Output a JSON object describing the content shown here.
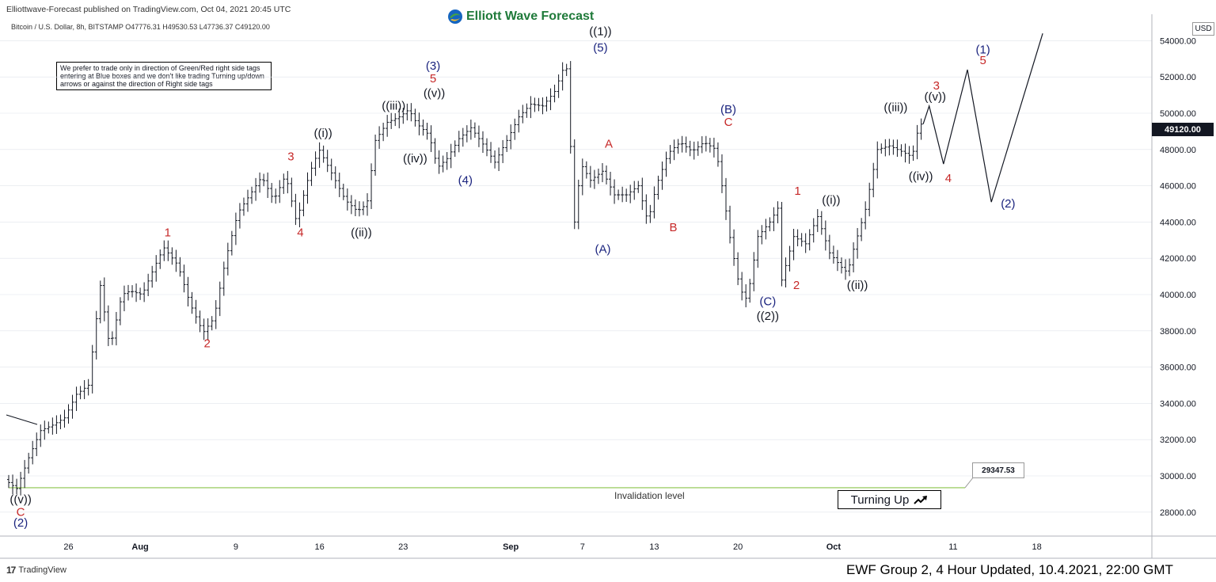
{
  "header": {
    "publish_line": "Elliottwave-Forecast published on TradingView.com, Oct 04, 2021 20:45 UTC",
    "brand": "Elliott Wave Forecast",
    "symbol_line": "Bitcoin / U.S. Dollar, 8h, BITSTAMP  O47776.31  H49530.53  L47736.37  C49120.00"
  },
  "note": "We prefer to trade only in direction of Green/Red right side tags entering at Blue boxes and we don't like trading Turning up/down arrows or against the direction of Right side tags",
  "price_axis": {
    "currency": "USD",
    "current_price": "49120.00"
  },
  "invalidation": {
    "label": "Invalidation level",
    "value": "29347.53",
    "level": 29347.53,
    "color": "#8bc34a"
  },
  "turning": {
    "label": "Turning Up",
    "icon": "arrow-up-right-icon"
  },
  "footer": {
    "tradingview": "TradingView",
    "ewf": "EWF Group 2, 4 Hour Updated, 10.4.2021, 22:00 GMT"
  },
  "colors": {
    "blue": "#1a237e",
    "red": "#c62828",
    "black": "#131722",
    "grid": "#e0e3eb"
  },
  "chart_data": {
    "type": "line",
    "title": "",
    "ylim": [
      26500,
      55500
    ],
    "yticks": [
      28000,
      30000,
      32000,
      34000,
      36000,
      38000,
      40000,
      42000,
      44000,
      46000,
      48000,
      50000,
      52000,
      54000
    ],
    "ytick_labels": [
      "28000.00",
      "30000.00",
      "32000.00",
      "34000.00",
      "36000.00",
      "38000.00",
      "40000.00",
      "42000.00",
      "44000.00",
      "46000.00",
      "48000.00",
      "50000.00",
      "52000.00",
      "54000.00"
    ],
    "x_ticks": [
      {
        "label": "26",
        "bold": false
      },
      {
        "label": "Aug",
        "bold": true
      },
      {
        "label": "9",
        "bold": false
      },
      {
        "label": "16",
        "bold": false
      },
      {
        "label": "23",
        "bold": false
      },
      {
        "label": "Sep",
        "bold": true
      },
      {
        "label": "7",
        "bold": false
      },
      {
        "label": "13",
        "bold": false
      },
      {
        "label": "20",
        "bold": false
      },
      {
        "label": "Oct",
        "bold": true
      },
      {
        "label": "11",
        "bold": false
      },
      {
        "label": "18",
        "bold": false
      }
    ],
    "x_tick_days": [
      5,
      11,
      19,
      26,
      33,
      42,
      48,
      54,
      61,
      69,
      79,
      86
    ],
    "price_path": [
      [
        0.0,
        29800
      ],
      [
        1.0,
        29300
      ],
      [
        2.0,
        31000
      ],
      [
        3.0,
        32500
      ],
      [
        4.0,
        32800
      ],
      [
        5.0,
        33200
      ],
      [
        6.0,
        34500
      ],
      [
        7.0,
        35000
      ],
      [
        8.0,
        40500
      ],
      [
        8.8,
        37000
      ],
      [
        9.8,
        40000
      ],
      [
        10.5,
        40200
      ],
      [
        11.5,
        40000
      ],
      [
        12.5,
        41500
      ],
      [
        13.3,
        42600
      ],
      [
        14.5,
        41600
      ],
      [
        15.5,
        39500
      ],
      [
        16.6,
        37900
      ],
      [
        17.5,
        38700
      ],
      [
        18.5,
        42000
      ],
      [
        19.5,
        44500
      ],
      [
        20.5,
        45500
      ],
      [
        21.5,
        46500
      ],
      [
        22.5,
        45200
      ],
      [
        23.5,
        46600
      ],
      [
        24.4,
        44000
      ],
      [
        25.5,
        46700
      ],
      [
        26.3,
        48000
      ],
      [
        27.5,
        46500
      ],
      [
        28.5,
        45200
      ],
      [
        29.5,
        44600
      ],
      [
        30.3,
        45000
      ],
      [
        31.0,
        48500
      ],
      [
        32.0,
        49500
      ],
      [
        33.0,
        49800
      ],
      [
        33.8,
        50200
      ],
      [
        34.5,
        49400
      ],
      [
        35.5,
        48800
      ],
      [
        36.2,
        47000
      ],
      [
        37.0,
        47500
      ],
      [
        38.0,
        48600
      ],
      [
        39.0,
        49200
      ],
      [
        40.0,
        48300
      ],
      [
        41.0,
        47300
      ],
      [
        42.0,
        48500
      ],
      [
        43.0,
        49800
      ],
      [
        44.0,
        50500
      ],
      [
        45.0,
        50400
      ],
      [
        46.0,
        51200
      ],
      [
        46.8,
        52600
      ],
      [
        47.2,
        52300
      ],
      [
        47.5,
        43000
      ],
      [
        48.2,
        47200
      ],
      [
        49.0,
        46300
      ],
      [
        50.0,
        46800
      ],
      [
        51.0,
        45500
      ],
      [
        52.0,
        45500
      ],
      [
        53.0,
        46000
      ],
      [
        53.8,
        44000
      ],
      [
        54.5,
        46000
      ],
      [
        55.5,
        47800
      ],
      [
        56.5,
        48400
      ],
      [
        57.5,
        47900
      ],
      [
        58.5,
        48400
      ],
      [
        59.5,
        48000
      ],
      [
        60.2,
        45200
      ],
      [
        60.7,
        43000
      ],
      [
        61.5,
        40300
      ],
      [
        62.1,
        39700
      ],
      [
        63.0,
        43200
      ],
      [
        64.0,
        44000
      ],
      [
        64.7,
        44800
      ],
      [
        65.0,
        40800
      ],
      [
        66.0,
        43200
      ],
      [
        67.0,
        42800
      ],
      [
        68.0,
        44300
      ],
      [
        69.0,
        42300
      ],
      [
        70.0,
        41500
      ],
      [
        70.5,
        41200
      ],
      [
        71.0,
        42500
      ],
      [
        72.0,
        44700
      ],
      [
        73.0,
        48000
      ],
      [
        74.0,
        48200
      ],
      [
        75.0,
        47900
      ],
      [
        75.9,
        47600
      ],
      [
        76.5,
        49400
      ]
    ],
    "projection_path": [
      [
        76.5,
        49400
      ],
      [
        77.0,
        50400
      ],
      [
        78.2,
        47200
      ],
      [
        80.2,
        52400
      ],
      [
        82.2,
        45100
      ],
      [
        86.5,
        54400
      ]
    ],
    "invalidation_line_start_day": 0,
    "invalidation_line_end_day": 80,
    "wave_labels": [
      {
        "text": "((v))",
        "day": 1.0,
        "price": 28500,
        "color": "black"
      },
      {
        "text": "C",
        "day": 1.0,
        "price": 27800,
        "color": "red"
      },
      {
        "text": "(2)",
        "day": 1.0,
        "price": 27200,
        "color": "blue"
      },
      {
        "text": "1",
        "day": 13.3,
        "price": 43200,
        "color": "red"
      },
      {
        "text": "2",
        "day": 16.6,
        "price": 37100,
        "color": "red"
      },
      {
        "text": "3",
        "day": 23.6,
        "price": 47400,
        "color": "red"
      },
      {
        "text": "4",
        "day": 24.4,
        "price": 43200,
        "color": "red"
      },
      {
        "text": "((i))",
        "day": 26.3,
        "price": 48700,
        "color": "black"
      },
      {
        "text": "((ii))",
        "day": 29.5,
        "price": 43200,
        "color": "black"
      },
      {
        "text": "((iii))",
        "day": 32.2,
        "price": 50200,
        "color": "black"
      },
      {
        "text": "((iv))",
        "day": 34.0,
        "price": 47300,
        "color": "black"
      },
      {
        "text": "((v))",
        "day": 35.6,
        "price": 50900,
        "color": "black"
      },
      {
        "text": "5",
        "day": 35.5,
        "price": 51700,
        "color": "red"
      },
      {
        "text": "(3)",
        "day": 35.5,
        "price": 52400,
        "color": "blue"
      },
      {
        "text": "(4)",
        "day": 38.2,
        "price": 46100,
        "color": "blue"
      },
      {
        "text": "(5)",
        "day": 49.5,
        "price": 53400,
        "color": "blue"
      },
      {
        "text": "((1))",
        "day": 49.5,
        "price": 54300,
        "color": "black"
      },
      {
        "text": "A",
        "day": 50.2,
        "price": 48100,
        "color": "red"
      },
      {
        "text": "(A)",
        "day": 49.7,
        "price": 42300,
        "color": "blue"
      },
      {
        "text": "B",
        "day": 55.6,
        "price": 43500,
        "color": "red"
      },
      {
        "text": "(B)",
        "day": 60.2,
        "price": 50000,
        "color": "blue"
      },
      {
        "text": "C",
        "day": 60.2,
        "price": 49300,
        "color": "red"
      },
      {
        "text": "(C)",
        "day": 63.5,
        "price": 39400,
        "color": "blue"
      },
      {
        "text": "((2))",
        "day": 63.5,
        "price": 38600,
        "color": "black"
      },
      {
        "text": "1",
        "day": 66.0,
        "price": 45500,
        "color": "red"
      },
      {
        "text": "2",
        "day": 65.9,
        "price": 40300,
        "color": "red"
      },
      {
        "text": "((i))",
        "day": 68.8,
        "price": 45000,
        "color": "black"
      },
      {
        "text": "((ii))",
        "day": 71.0,
        "price": 40300,
        "color": "black"
      },
      {
        "text": "((iii))",
        "day": 74.2,
        "price": 50100,
        "color": "black"
      },
      {
        "text": "((iv))",
        "day": 76.3,
        "price": 46300,
        "color": "black"
      },
      {
        "text": "((v))",
        "day": 77.5,
        "price": 50700,
        "color": "black"
      },
      {
        "text": "3",
        "day": 77.6,
        "price": 51300,
        "color": "red"
      },
      {
        "text": "4",
        "day": 78.6,
        "price": 46200,
        "color": "red"
      },
      {
        "text": "5",
        "day": 81.5,
        "price": 52700,
        "color": "red"
      },
      {
        "text": "(1)",
        "day": 81.5,
        "price": 53300,
        "color": "blue"
      },
      {
        "text": "(2)",
        "day": 83.6,
        "price": 44800,
        "color": "blue"
      }
    ]
  }
}
